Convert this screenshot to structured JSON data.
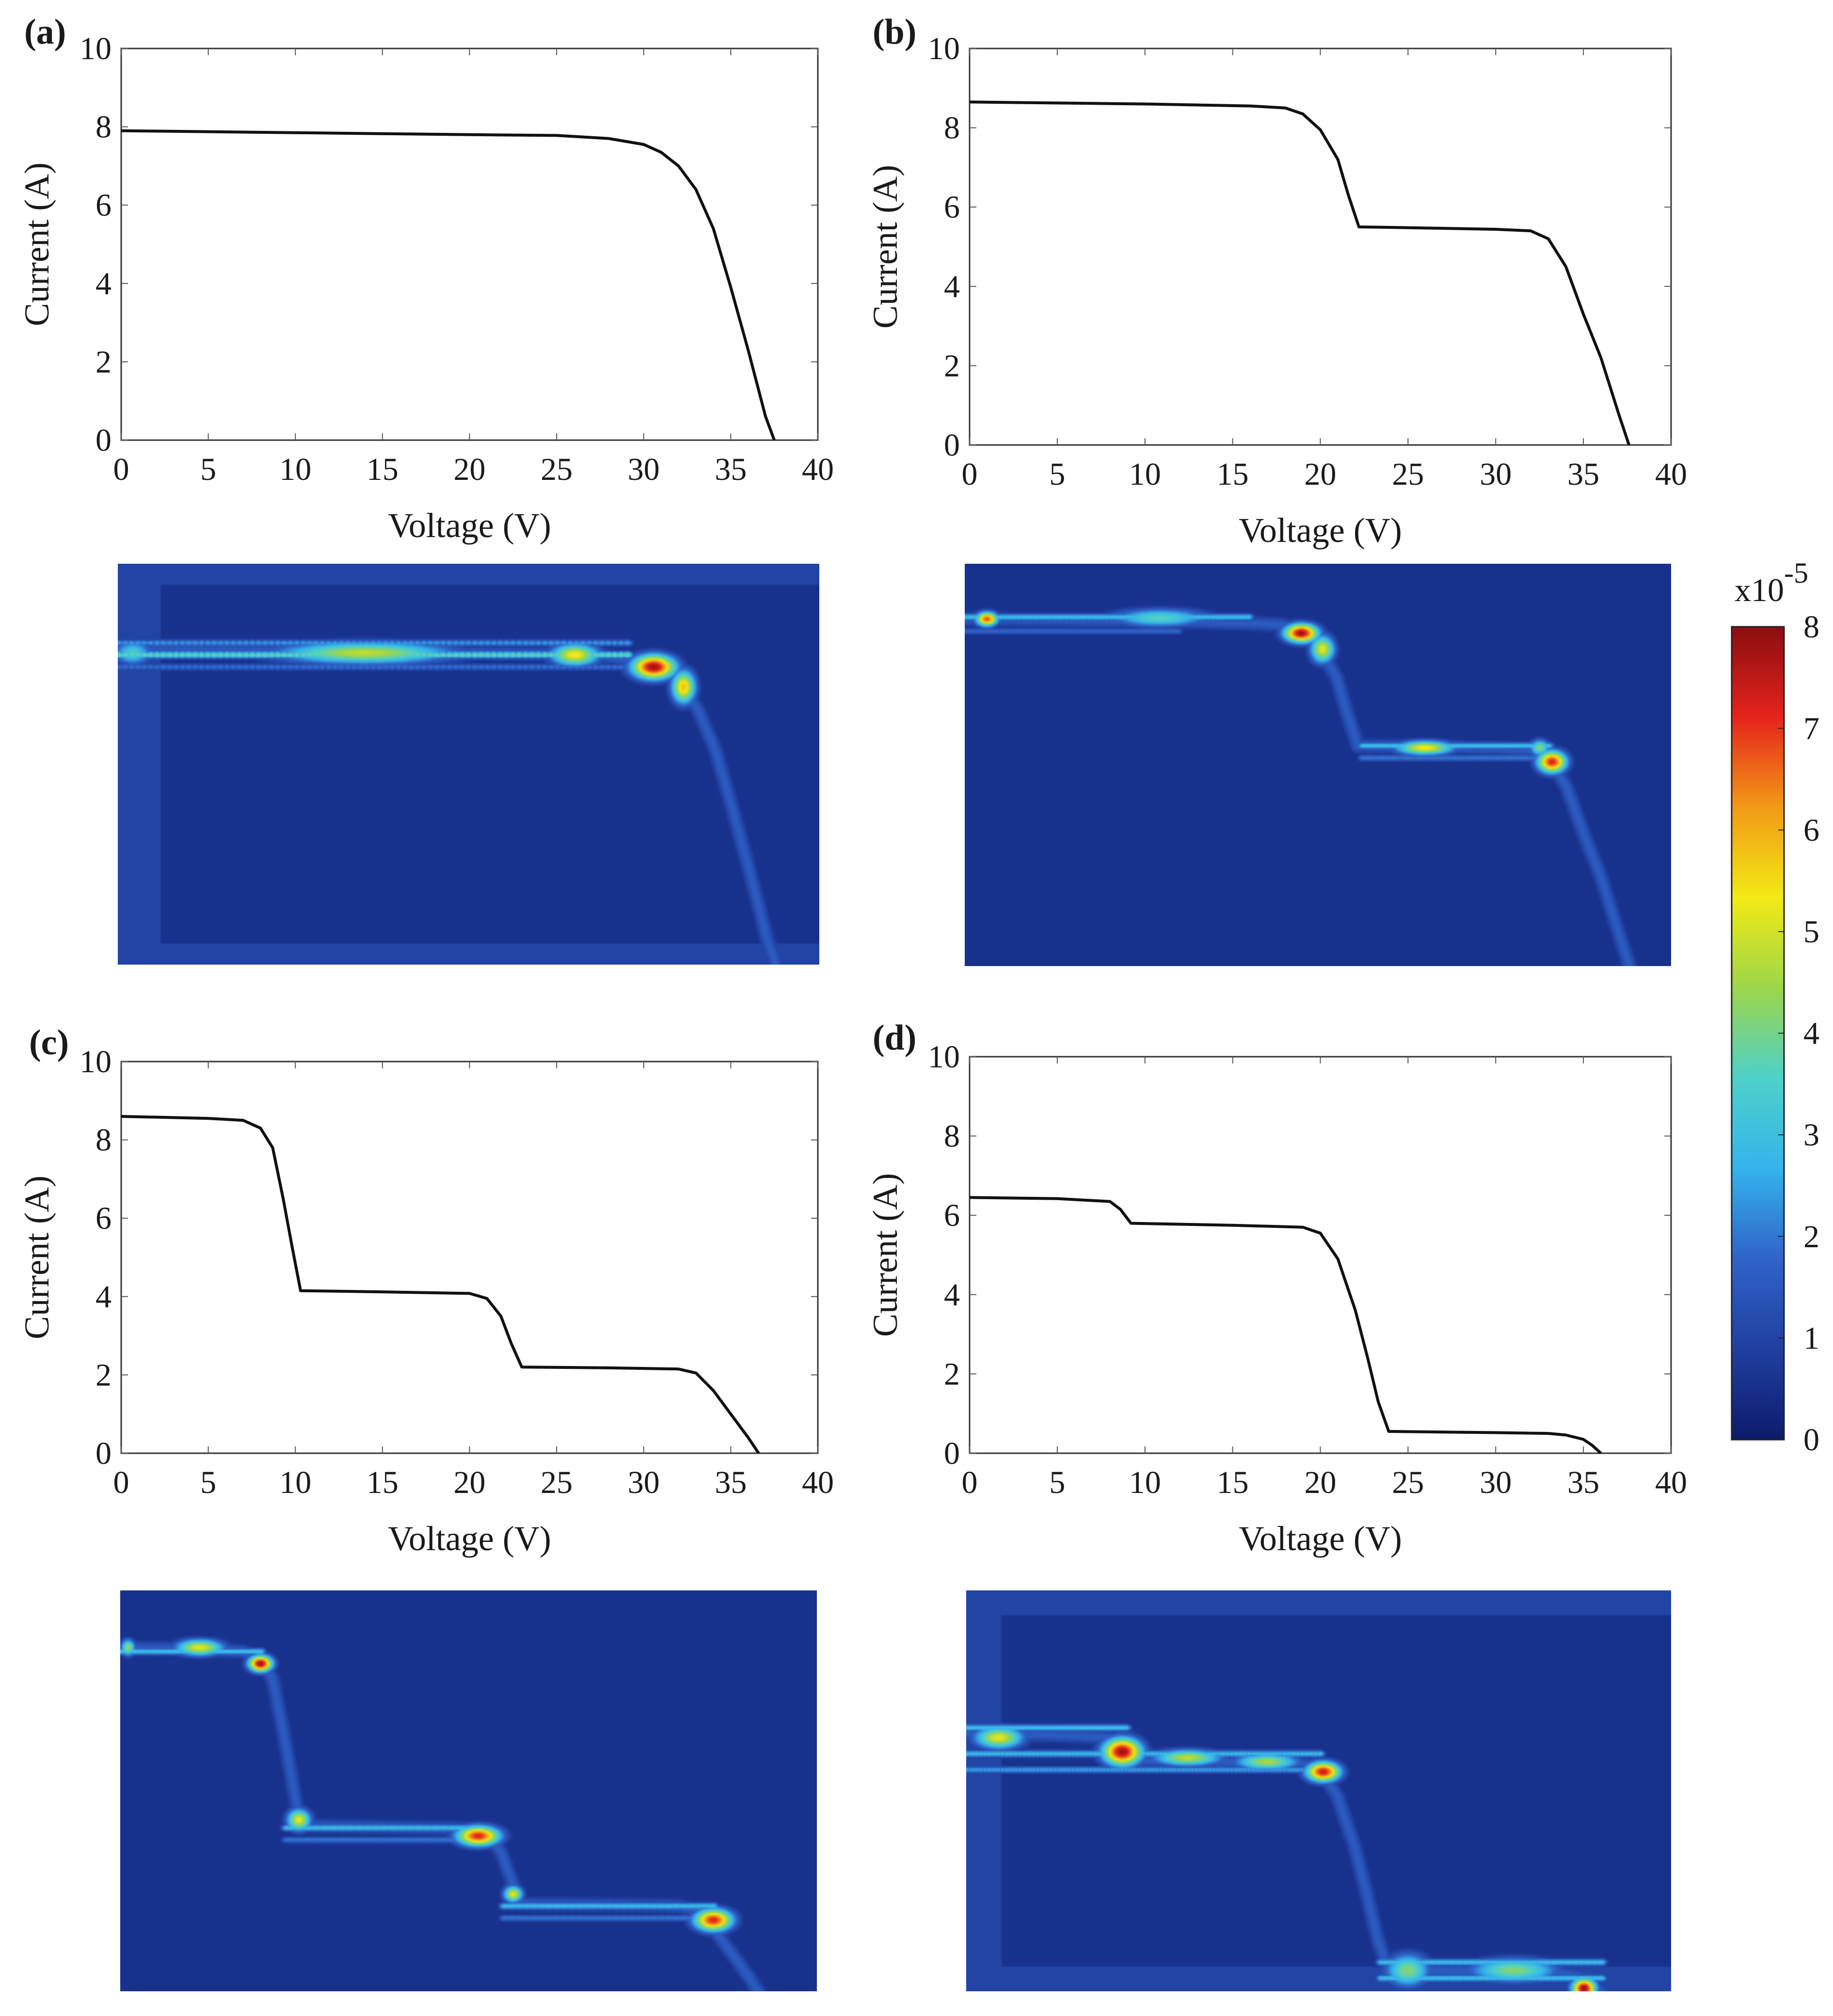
{
  "figure": {
    "colorbar": {
      "exponent_label": "x10",
      "exponent_sup": "-5",
      "min": 0,
      "max": 8,
      "ticks": [
        "0",
        "1",
        "2",
        "3",
        "4",
        "5",
        "6",
        "7",
        "8"
      ],
      "colors": [
        "#0d1b6b",
        "#1f3fa0",
        "#2f63c8",
        "#35b3ec",
        "#4fd0c9",
        "#9cd64a",
        "#f2ea15",
        "#f29a17",
        "#e5231b",
        "#8a0d10"
      ]
    },
    "heatmap_palette": {
      "background": "#1e3a92",
      "border_band": "#2d5cb8",
      "low": "#3a7ad0",
      "mid": "#3ec6ee",
      "high": "#e9e62a",
      "hot": "#e42d1e",
      "peak": "#8a0c0e"
    }
  },
  "chart_data": [
    {
      "panel": "(a)",
      "type": "line",
      "xlabel": "Voltage (V)",
      "ylabel": "Current (A)",
      "xlim": [
        0,
        40
      ],
      "ylim": [
        0,
        10
      ],
      "xticks": [
        "0",
        "5",
        "10",
        "15",
        "20",
        "25",
        "30",
        "35",
        "40"
      ],
      "yticks": [
        "0",
        "2",
        "4",
        "6",
        "8",
        "10"
      ],
      "series": [
        {
          "name": "I-V",
          "x": [
            0,
            10,
            20,
            25,
            28,
            30,
            31,
            32,
            33,
            34,
            35,
            36,
            37,
            37.5
          ],
          "y": [
            7.9,
            7.85,
            7.8,
            7.78,
            7.7,
            7.55,
            7.35,
            7.0,
            6.4,
            5.4,
            3.9,
            2.3,
            0.6,
            0
          ]
        }
      ]
    },
    {
      "panel": "(b)",
      "type": "line",
      "xlabel": "Voltage (V)",
      "ylabel": "Current (A)",
      "xlim": [
        0,
        40
      ],
      "ylim": [
        0,
        10
      ],
      "xticks": [
        "0",
        "5",
        "10",
        "15",
        "20",
        "25",
        "30",
        "35",
        "40"
      ],
      "yticks": [
        "0",
        "2",
        "4",
        "6",
        "8",
        "10"
      ],
      "series": [
        {
          "name": "I-V",
          "x": [
            0,
            10,
            16,
            18,
            19,
            20,
            21,
            21.6,
            22.2,
            25,
            30,
            32,
            33,
            34,
            35,
            36,
            37,
            37.6
          ],
          "y": [
            8.65,
            8.6,
            8.55,
            8.5,
            8.35,
            7.95,
            7.2,
            6.3,
            5.5,
            5.48,
            5.44,
            5.4,
            5.2,
            4.5,
            3.3,
            2.2,
            0.8,
            0
          ]
        }
      ]
    },
    {
      "panel": "(c)",
      "type": "line",
      "xlabel": "Voltage (V)",
      "ylabel": "Current (A)",
      "xlim": [
        0,
        40
      ],
      "ylim": [
        0,
        10
      ],
      "xticks": [
        "0",
        "5",
        "10",
        "15",
        "20",
        "25",
        "30",
        "35",
        "40"
      ],
      "yticks": [
        "0",
        "2",
        "4",
        "6",
        "8",
        "10"
      ],
      "series": [
        {
          "name": "I-V",
          "x": [
            0,
            5,
            7,
            8,
            8.7,
            9.3,
            9.8,
            10.3,
            15,
            20,
            21,
            21.8,
            22.4,
            23,
            28,
            32,
            33,
            34,
            35,
            36,
            36.6
          ],
          "y": [
            8.6,
            8.55,
            8.5,
            8.3,
            7.8,
            6.5,
            5.3,
            4.15,
            4.12,
            4.08,
            3.95,
            3.5,
            2.8,
            2.2,
            2.18,
            2.15,
            2.05,
            1.6,
            1.0,
            0.4,
            0
          ]
        }
      ]
    },
    {
      "panel": "(d)",
      "type": "line",
      "xlabel": "Voltage (V)",
      "ylabel": "Current (A)",
      "xlim": [
        0,
        40
      ],
      "ylim": [
        0,
        10
      ],
      "xticks": [
        "0",
        "5",
        "10",
        "15",
        "20",
        "25",
        "30",
        "35",
        "40"
      ],
      "yticks": [
        "0",
        "2",
        "4",
        "6",
        "8",
        "10"
      ],
      "series": [
        {
          "name": "I-V",
          "x": [
            0,
            5,
            8,
            8.6,
            9.2,
            15,
            19,
            20,
            21,
            22,
            22.7,
            23.3,
            23.9,
            30,
            33,
            34,
            35,
            35.5,
            36
          ],
          "y": [
            6.45,
            6.42,
            6.35,
            6.15,
            5.8,
            5.75,
            5.7,
            5.55,
            4.9,
            3.6,
            2.4,
            1.3,
            0.55,
            0.52,
            0.5,
            0.46,
            0.35,
            0.2,
            0
          ]
        }
      ]
    },
    {
      "panel": "(a) heatmap",
      "type": "heatmap",
      "vmin": 0,
      "vmax": 8,
      "border": {
        "top": 0.05,
        "bottom": 0.05,
        "left": 0.06
      },
      "ridge": {
        "voltage": [
          0,
          10,
          20,
          25,
          28,
          30,
          31,
          32,
          33,
          34,
          35,
          36,
          37,
          37.5
        ],
        "current": [
          7.9,
          7.85,
          7.8,
          7.78,
          7.7,
          7.55,
          7.35,
          7.0,
          6.4,
          5.4,
          3.9,
          2.3,
          0.6,
          0
        ]
      },
      "bands": [
        {
          "x0": 0,
          "x1": 29,
          "y": 7.75,
          "level": 4
        },
        {
          "x0": 0,
          "x1": 29,
          "y": 8.05,
          "level": 2.5
        },
        {
          "x0": 0,
          "x1": 29,
          "y": 7.45,
          "level": 2
        }
      ],
      "hotspots": [
        {
          "x": 14,
          "y": 7.8,
          "level": 4.8,
          "sx": 3.6,
          "sy": 0.2
        },
        {
          "x": 0.8,
          "y": 7.8,
          "level": 3.4,
          "sx": 0.8,
          "sy": 0.22
        },
        {
          "x": 26,
          "y": 7.75,
          "level": 5.4,
          "sx": 1.0,
          "sy": 0.2
        },
        {
          "x": 30.5,
          "y": 7.45,
          "level": 7.8,
          "sx": 0.9,
          "sy": 0.22
        },
        {
          "x": 32.2,
          "y": 6.95,
          "level": 5.8,
          "sx": 0.5,
          "sy": 0.3
        }
      ]
    },
    {
      "panel": "(b) heatmap",
      "type": "heatmap",
      "vmin": 0,
      "vmax": 8,
      "border": {
        "top": 0,
        "bottom": 0,
        "left": 0
      },
      "ridge": {
        "voltage": [
          0,
          10,
          16,
          18,
          19,
          20,
          21,
          21.6,
          22.2,
          25,
          30,
          32,
          33,
          34,
          35,
          36,
          37,
          37.6
        ],
        "current": [
          8.65,
          8.6,
          8.55,
          8.5,
          8.35,
          7.95,
          7.2,
          6.3,
          5.5,
          5.48,
          5.44,
          5.4,
          5.2,
          4.5,
          3.3,
          2.2,
          0.8,
          0
        ]
      },
      "bands": [
        {
          "x0": 0,
          "x1": 16,
          "y": 8.7,
          "level": 3
        },
        {
          "x0": 0,
          "x1": 12,
          "y": 8.35,
          "level": 1.8
        },
        {
          "x0": 22.5,
          "x1": 33,
          "y": 5.5,
          "level": 3
        },
        {
          "x0": 22.5,
          "x1": 33,
          "y": 5.2,
          "level": 2
        }
      ],
      "hotspots": [
        {
          "x": 1.2,
          "y": 8.65,
          "level": 6.8,
          "sx": 0.45,
          "sy": 0.13
        },
        {
          "x": 11,
          "y": 8.68,
          "level": 3.6,
          "sx": 2.0,
          "sy": 0.17
        },
        {
          "x": 19,
          "y": 8.3,
          "level": 7.8,
          "sx": 0.7,
          "sy": 0.17
        },
        {
          "x": 20.2,
          "y": 7.9,
          "level": 5.2,
          "sx": 0.5,
          "sy": 0.25
        },
        {
          "x": 26,
          "y": 5.45,
          "level": 5.4,
          "sx": 1.2,
          "sy": 0.13
        },
        {
          "x": 33.2,
          "y": 5.1,
          "level": 7.2,
          "sx": 0.6,
          "sy": 0.2
        },
        {
          "x": 32.5,
          "y": 5.45,
          "level": 4.2,
          "sx": 0.4,
          "sy": 0.15
        }
      ]
    },
    {
      "panel": "(c) heatmap",
      "type": "heatmap",
      "vmin": 0,
      "vmax": 8,
      "border": {
        "top": 0,
        "bottom": 0,
        "left": 0
      },
      "ridge": {
        "voltage": [
          0,
          5,
          7,
          8,
          8.7,
          9.3,
          9.8,
          10.3,
          15,
          20,
          21,
          21.8,
          22.4,
          23,
          28,
          32,
          33,
          34,
          35,
          36,
          36.6
        ],
        "current": [
          8.6,
          8.55,
          8.5,
          8.3,
          7.8,
          6.5,
          5.3,
          4.15,
          4.12,
          4.08,
          3.95,
          3.5,
          2.8,
          2.2,
          2.18,
          2.15,
          2.05,
          1.6,
          1.0,
          0.4,
          0
        ]
      },
      "bands": [
        {
          "x0": 0,
          "x1": 8,
          "y": 8.5,
          "level": 3
        },
        {
          "x0": 9.5,
          "x1": 21,
          "y": 4.1,
          "level": 3
        },
        {
          "x0": 9.5,
          "x1": 21,
          "y": 3.8,
          "level": 2
        },
        {
          "x0": 22,
          "x1": 34,
          "y": 2.15,
          "level": 3
        },
        {
          "x0": 22,
          "x1": 34,
          "y": 1.85,
          "level": 2
        }
      ],
      "hotspots": [
        {
          "x": 4.5,
          "y": 8.6,
          "level": 5.2,
          "sx": 1.0,
          "sy": 0.15
        },
        {
          "x": 0.4,
          "y": 8.6,
          "level": 4.4,
          "sx": 0.3,
          "sy": 0.15
        },
        {
          "x": 8,
          "y": 8.2,
          "level": 7.8,
          "sx": 0.5,
          "sy": 0.15
        },
        {
          "x": 10.2,
          "y": 4.3,
          "level": 5.2,
          "sx": 0.5,
          "sy": 0.2
        },
        {
          "x": 20.5,
          "y": 3.9,
          "level": 7.2,
          "sx": 0.9,
          "sy": 0.18
        },
        {
          "x": 22.5,
          "y": 2.45,
          "level": 5.2,
          "sx": 0.4,
          "sy": 0.15
        },
        {
          "x": 34,
          "y": 1.8,
          "level": 7.2,
          "sx": 0.8,
          "sy": 0.2
        }
      ]
    },
    {
      "panel": "(d) heatmap",
      "type": "heatmap",
      "vmin": 0,
      "vmax": 8,
      "border": {
        "top": 0.06,
        "bottom": 0.06,
        "left": 0.05
      },
      "ridge": {
        "voltage": [
          0,
          5,
          8,
          8.6,
          9.2,
          15,
          19,
          20,
          21,
          22,
          22.7,
          23.3,
          23.9,
          30,
          33,
          34,
          35,
          35.5,
          36
        ],
        "current": [
          6.45,
          6.42,
          6.35,
          6.15,
          5.8,
          5.75,
          5.7,
          5.55,
          4.9,
          3.6,
          2.4,
          1.3,
          0.55,
          0.52,
          0.5,
          0.46,
          0.35,
          0.2,
          0
        ]
      },
      "bands": [
        {
          "x0": 0,
          "x1": 9,
          "y": 6.6,
          "level": 3
        },
        {
          "x0": 0,
          "x1": 20,
          "y": 5.95,
          "level": 3
        },
        {
          "x0": 0,
          "x1": 20,
          "y": 5.55,
          "level": 2.5
        },
        {
          "x0": 23.5,
          "x1": 36,
          "y": 0.75,
          "level": 3
        },
        {
          "x0": 23.5,
          "x1": 36,
          "y": 0.35,
          "level": 3
        }
      ],
      "hotspots": [
        {
          "x": 1.8,
          "y": 6.35,
          "level": 5.2,
          "sx": 1.0,
          "sy": 0.2
        },
        {
          "x": 8.8,
          "y": 6.0,
          "level": 7.8,
          "sx": 0.8,
          "sy": 0.25
        },
        {
          "x": 12.5,
          "y": 5.85,
          "level": 4.8,
          "sx": 1.4,
          "sy": 0.15
        },
        {
          "x": 17,
          "y": 5.75,
          "level": 4.6,
          "sx": 1.3,
          "sy": 0.15
        },
        {
          "x": 20.2,
          "y": 5.5,
          "level": 7.4,
          "sx": 0.7,
          "sy": 0.18
        },
        {
          "x": 25,
          "y": 0.55,
          "level": 4.2,
          "sx": 0.9,
          "sy": 0.3
        },
        {
          "x": 31,
          "y": 0.55,
          "level": 4.2,
          "sx": 1.8,
          "sy": 0.22
        },
        {
          "x": 35,
          "y": 0.1,
          "level": 7.8,
          "sx": 0.5,
          "sy": 0.18
        }
      ]
    }
  ]
}
